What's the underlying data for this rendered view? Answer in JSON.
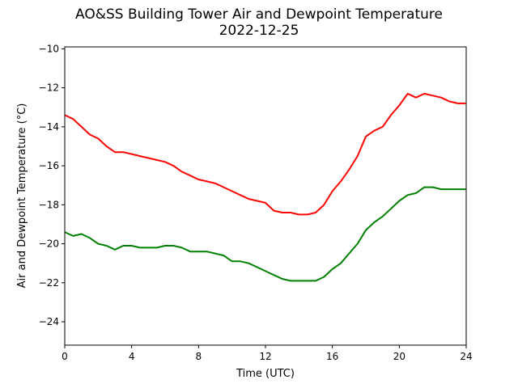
{
  "chart_data": {
    "type": "line",
    "title": "AO&SS Building Tower Air and Dewpoint Temperature",
    "subtitle": "2022-12-25",
    "xlabel": "Time (UTC)",
    "ylabel": "Air and Dewpoint Temperature (°C)",
    "xlim": [
      0,
      24
    ],
    "ylim": [
      -25.2,
      -9.9
    ],
    "xticks": [
      0,
      4,
      8,
      12,
      16,
      20,
      24
    ],
    "yticks": [
      -24,
      -22,
      -20,
      -18,
      -16,
      -14,
      -12,
      -10
    ],
    "ytick_labels": [
      "−24",
      "−22",
      "−20",
      "−18",
      "−16",
      "−14",
      "−12",
      "−10"
    ],
    "grid": false,
    "series": [
      {
        "color": "#ff0000",
        "x": [
          0,
          0.5,
          1,
          1.5,
          2,
          2.5,
          3,
          3.5,
          4,
          4.5,
          5,
          5.5,
          6,
          6.5,
          7,
          7.5,
          8,
          8.5,
          9,
          9.5,
          10,
          10.5,
          11,
          11.5,
          12,
          12.5,
          13,
          13.5,
          14,
          14.5,
          15,
          15.5,
          16,
          16.5,
          17,
          17.5,
          18,
          18.5,
          19,
          19.5,
          20,
          20.5,
          21,
          21.5,
          22,
          22.5,
          23,
          23.5,
          24
        ],
        "y": [
          -13.4,
          -13.6,
          -14.0,
          -14.4,
          -14.6,
          -15.0,
          -15.3,
          -15.3,
          -15.4,
          -15.5,
          -15.6,
          -15.7,
          -15.8,
          -16.0,
          -16.3,
          -16.5,
          -16.7,
          -16.8,
          -16.9,
          -17.1,
          -17.3,
          -17.5,
          -17.7,
          -17.8,
          -17.9,
          -18.3,
          -18.4,
          -18.4,
          -18.5,
          -18.5,
          -18.4,
          -18.0,
          -17.3,
          -16.8,
          -16.2,
          -15.5,
          -14.5,
          -14.2,
          -14.0,
          -13.4,
          -12.9,
          -12.3,
          -12.5,
          -12.3,
          -12.4,
          -12.5,
          -12.7,
          -12.8,
          -12.8
        ]
      },
      {
        "color": "#008000",
        "x": [
          0,
          0.5,
          1,
          1.5,
          2,
          2.5,
          3,
          3.5,
          4,
          4.5,
          5,
          5.5,
          6,
          6.5,
          7,
          7.5,
          8,
          8.5,
          9,
          9.5,
          10,
          10.5,
          11,
          11.5,
          12,
          12.5,
          13,
          13.5,
          14,
          14.5,
          15,
          15.5,
          16,
          16.5,
          17,
          17.5,
          18,
          18.5,
          19,
          19.5,
          20,
          20.5,
          21,
          21.5,
          22,
          22.5,
          23,
          23.5,
          24
        ],
        "y": [
          -19.4,
          -19.6,
          -19.5,
          -19.7,
          -20.0,
          -20.1,
          -20.3,
          -20.1,
          -20.1,
          -20.2,
          -20.2,
          -20.2,
          -20.1,
          -20.1,
          -20.2,
          -20.4,
          -20.4,
          -20.4,
          -20.5,
          -20.6,
          -20.9,
          -20.9,
          -21.0,
          -21.2,
          -21.4,
          -21.6,
          -21.8,
          -21.9,
          -21.9,
          -21.9,
          -21.9,
          -21.7,
          -21.3,
          -21.0,
          -20.5,
          -20.0,
          -19.3,
          -18.9,
          -18.6,
          -18.2,
          -17.8,
          -17.5,
          -17.4,
          -17.1,
          -17.1,
          -17.2,
          -17.2,
          -17.2,
          -17.2
        ]
      }
    ]
  }
}
